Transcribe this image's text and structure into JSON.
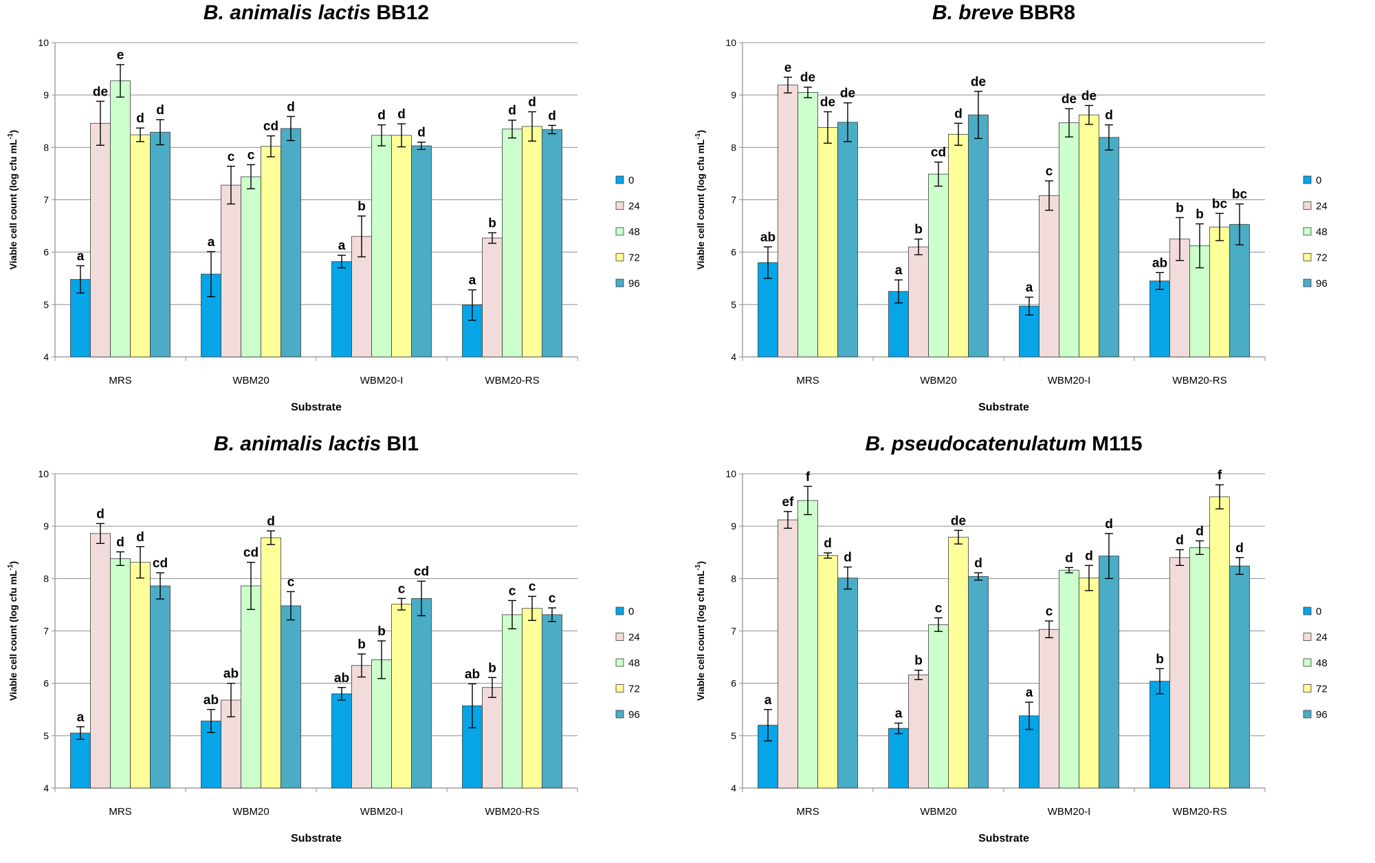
{
  "chart_data": [
    {
      "type": "bar",
      "title": "B. animalis lactis BB12",
      "title_italic": "B. animalis lactis",
      "title_plain": "BB12",
      "xlabel": "Substrate",
      "ylabel": "Viable cell count (log cfu mL",
      "ylabel_sup": "-1",
      "ylabel_close": ")",
      "ylim": [
        4,
        10
      ],
      "yticks": [
        "4",
        "5",
        "6",
        "7",
        "8",
        "9",
        "10"
      ],
      "grid": true,
      "legend": "right",
      "categories": [
        "MRS",
        "WBM20",
        "WBM20-I",
        "WBM20-RS"
      ],
      "series": [
        {
          "name": "0",
          "color": "#05a5e8",
          "values": [
            5.48,
            5.58,
            5.82,
            4.99
          ],
          "errors": [
            0.26,
            0.43,
            0.12,
            0.29
          ],
          "letters": [
            "a",
            "a",
            "a",
            "a"
          ]
        },
        {
          "name": "24",
          "color": "#f2dcdb",
          "values": [
            8.46,
            7.28,
            6.3,
            6.27
          ],
          "errors": [
            0.42,
            0.36,
            0.39,
            0.1
          ],
          "letters": [
            "de",
            "c",
            "b",
            "b"
          ]
        },
        {
          "name": "48",
          "color": "#ccffcc",
          "values": [
            9.27,
            7.44,
            8.23,
            8.35
          ],
          "errors": [
            0.31,
            0.23,
            0.2,
            0.17
          ],
          "letters": [
            "e",
            "c",
            "d",
            "d"
          ]
        },
        {
          "name": "72",
          "color": "#ffff99",
          "values": [
            8.24,
            8.02,
            8.23,
            8.4
          ],
          "errors": [
            0.13,
            0.2,
            0.22,
            0.28
          ],
          "letters": [
            "d",
            "cd",
            "d",
            "d"
          ]
        },
        {
          "name": "96",
          "color": "#4bacc6",
          "values": [
            8.29,
            8.36,
            8.03,
            8.34
          ],
          "errors": [
            0.24,
            0.23,
            0.07,
            0.08
          ],
          "letters": [
            "d",
            "d",
            "d",
            "d"
          ]
        }
      ]
    },
    {
      "type": "bar",
      "title": "B. breve BBR8",
      "title_italic": "B. breve",
      "title_plain": "BBR8",
      "xlabel": "Substrate",
      "ylabel": "Viable cell count (log cfu mL",
      "ylabel_sup": "-1",
      "ylabel_close": ")",
      "ylim": [
        4,
        10
      ],
      "yticks": [
        "4",
        "5",
        "6",
        "7",
        "8",
        "9",
        "10"
      ],
      "grid": true,
      "legend": "right",
      "categories": [
        "MRS",
        "WBM20",
        "WBM20-I",
        "WBM20-RS"
      ],
      "series": [
        {
          "name": "0",
          "color": "#05a5e8",
          "values": [
            5.8,
            5.25,
            4.97,
            5.45
          ],
          "errors": [
            0.3,
            0.22,
            0.17,
            0.16
          ],
          "letters": [
            "ab",
            "a",
            "a",
            "ab"
          ]
        },
        {
          "name": "24",
          "color": "#f2dcdb",
          "values": [
            9.19,
            6.1,
            7.08,
            6.25
          ],
          "errors": [
            0.15,
            0.15,
            0.28,
            0.41
          ],
          "letters": [
            "e",
            "b",
            "c",
            "b"
          ]
        },
        {
          "name": "48",
          "color": "#ccffcc",
          "values": [
            9.05,
            7.49,
            8.47,
            6.12
          ],
          "errors": [
            0.1,
            0.23,
            0.27,
            0.42
          ],
          "letters": [
            "de",
            "cd",
            "de",
            "b"
          ]
        },
        {
          "name": "72",
          "color": "#ffff99",
          "values": [
            8.38,
            8.25,
            8.62,
            6.48
          ],
          "errors": [
            0.3,
            0.21,
            0.18,
            0.26
          ],
          "letters": [
            "de",
            "d",
            "de",
            "bc"
          ]
        },
        {
          "name": "96",
          "color": "#4bacc6",
          "values": [
            8.48,
            8.62,
            8.19,
            6.53
          ],
          "errors": [
            0.37,
            0.45,
            0.24,
            0.39
          ],
          "letters": [
            "de",
            "de",
            "d",
            "bc"
          ]
        }
      ]
    },
    {
      "type": "bar",
      "title": "B. animalis lactis BI1",
      "title_italic": "B. animalis lactis",
      "title_plain": "BI1",
      "xlabel": "Substrate",
      "ylabel": "Viable cell count (log cfu mL",
      "ylabel_sup": "-1",
      "ylabel_close": ")",
      "ylim": [
        4,
        10
      ],
      "yticks": [
        "4",
        "5",
        "6",
        "7",
        "8",
        "9",
        "10"
      ],
      "grid": true,
      "legend": "right",
      "categories": [
        "MRS",
        "WBM20",
        "WBM20-I",
        "WBM20-RS"
      ],
      "series": [
        {
          "name": "0",
          "color": "#05a5e8",
          "values": [
            5.05,
            5.28,
            5.8,
            5.57
          ],
          "errors": [
            0.12,
            0.22,
            0.12,
            0.42
          ],
          "letters": [
            "a",
            "ab",
            "ab",
            "ab"
          ]
        },
        {
          "name": "24",
          "color": "#f2dcdb",
          "values": [
            8.86,
            5.68,
            6.34,
            5.92
          ],
          "errors": [
            0.19,
            0.32,
            0.22,
            0.19
          ],
          "letters": [
            "d",
            "ab",
            "b",
            "b"
          ]
        },
        {
          "name": "48",
          "color": "#ccffcc",
          "values": [
            8.38,
            7.86,
            6.45,
            7.31
          ],
          "errors": [
            0.13,
            0.45,
            0.36,
            0.27
          ],
          "letters": [
            "d",
            "cd",
            "b",
            "c"
          ]
        },
        {
          "name": "72",
          "color": "#ffff99",
          "values": [
            8.31,
            8.78,
            7.51,
            7.43
          ],
          "errors": [
            0.3,
            0.13,
            0.11,
            0.23
          ],
          "letters": [
            "d",
            "d",
            "c",
            "c"
          ]
        },
        {
          "name": "96",
          "color": "#4bacc6",
          "values": [
            7.86,
            7.48,
            7.62,
            7.31
          ],
          "errors": [
            0.25,
            0.27,
            0.33,
            0.13
          ],
          "letters": [
            "cd",
            "c",
            "cd",
            "c"
          ]
        }
      ]
    },
    {
      "type": "bar",
      "title": "B. pseudocatenulatum M115",
      "title_italic": "B. pseudocatenulatum",
      "title_plain": "M115",
      "xlabel": "Substrate",
      "ylabel": "Viable cell count (log cfu mL",
      "ylabel_sup": "-1",
      "ylabel_close": ")",
      "ylim": [
        4,
        10
      ],
      "yticks": [
        "4",
        "5",
        "6",
        "7",
        "8",
        "9",
        "10"
      ],
      "grid": true,
      "legend": "right",
      "categories": [
        "MRS",
        "WBM20",
        "WBM20-I",
        "WBM20-RS"
      ],
      "series": [
        {
          "name": "0",
          "color": "#05a5e8",
          "values": [
            5.2,
            5.14,
            5.38,
            6.04
          ],
          "errors": [
            0.3,
            0.1,
            0.26,
            0.24
          ],
          "letters": [
            "a",
            "a",
            "a",
            "b"
          ]
        },
        {
          "name": "24",
          "color": "#f2dcdb",
          "values": [
            9.12,
            6.16,
            7.03,
            8.4
          ],
          "errors": [
            0.16,
            0.09,
            0.16,
            0.15
          ],
          "letters": [
            "ef",
            "b",
            "c",
            "d"
          ]
        },
        {
          "name": "48",
          "color": "#ccffcc",
          "values": [
            9.49,
            7.12,
            8.16,
            8.59
          ],
          "errors": [
            0.27,
            0.13,
            0.05,
            0.13
          ],
          "letters": [
            "f",
            "c",
            "d",
            "d"
          ]
        },
        {
          "name": "72",
          "color": "#ffff99",
          "values": [
            8.44,
            8.79,
            8.01,
            9.56
          ],
          "errors": [
            0.05,
            0.13,
            0.24,
            0.23
          ],
          "letters": [
            "d",
            "de",
            "d",
            "f"
          ]
        },
        {
          "name": "96",
          "color": "#4bacc6",
          "values": [
            8.01,
            8.04,
            8.43,
            8.24
          ],
          "errors": [
            0.21,
            0.07,
            0.43,
            0.16
          ],
          "letters": [
            "d",
            "d",
            "d",
            "d"
          ]
        }
      ]
    }
  ]
}
